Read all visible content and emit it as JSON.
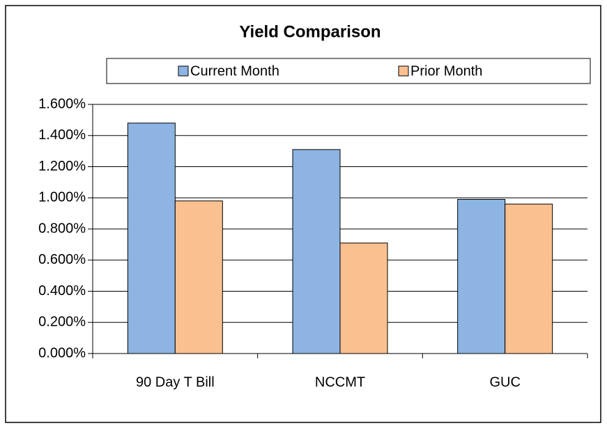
{
  "chart_data": {
    "type": "bar",
    "title": "Yield Comparison",
    "categories": [
      "90 Day T Bill",
      "NCCMT",
      "GUC"
    ],
    "series": [
      {
        "name": "Current Month",
        "color": "#8db4e2",
        "values": [
          1.48,
          1.31,
          0.99
        ]
      },
      {
        "name": "Prior Month",
        "color": "#fac090",
        "values": [
          0.98,
          0.71,
          0.96
        ]
      }
    ],
    "ylim": [
      0,
      1.6
    ],
    "yticks": [
      {
        "value": 0,
        "label": "0.000%"
      },
      {
        "value": 0.2,
        "label": "0.200%"
      },
      {
        "value": 0.4,
        "label": "0.400%"
      },
      {
        "value": 0.6,
        "label": "0.600%"
      },
      {
        "value": 0.8,
        "label": "0.800%"
      },
      {
        "value": 1.0,
        "label": "1.000%"
      },
      {
        "value": 1.2,
        "label": "1.200%"
      },
      {
        "value": 1.4,
        "label": "1.400%"
      },
      {
        "value": 1.6,
        "label": "1.600%"
      }
    ],
    "grid": true,
    "legend": "top"
  }
}
